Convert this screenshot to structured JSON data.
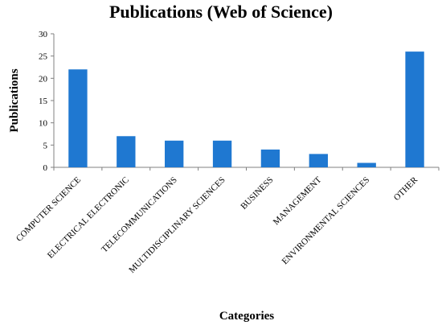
{
  "chart_data": {
    "type": "bar",
    "title": "Publications (Web of Science)",
    "xlabel": "Categories",
    "ylabel": "Publications",
    "categories": [
      "COMPUTER SCIENCE",
      "ELECTRICAL ELECTRONIC",
      "TELECOMMUNICATIONS",
      "MULTIDISCIPLINARY SCIENCES",
      "BUSINESS",
      "MANAGEMENT",
      "ENVIRONMENTAL SCIENCES",
      "OTHER"
    ],
    "values": [
      22,
      7,
      6,
      6,
      4,
      3,
      1,
      26
    ],
    "ylim": [
      0,
      30
    ],
    "yticks": [
      0,
      5,
      10,
      15,
      20,
      25,
      30
    ],
    "grid": false,
    "legend": "none",
    "colors": {
      "bar": "#1f78d1"
    }
  }
}
